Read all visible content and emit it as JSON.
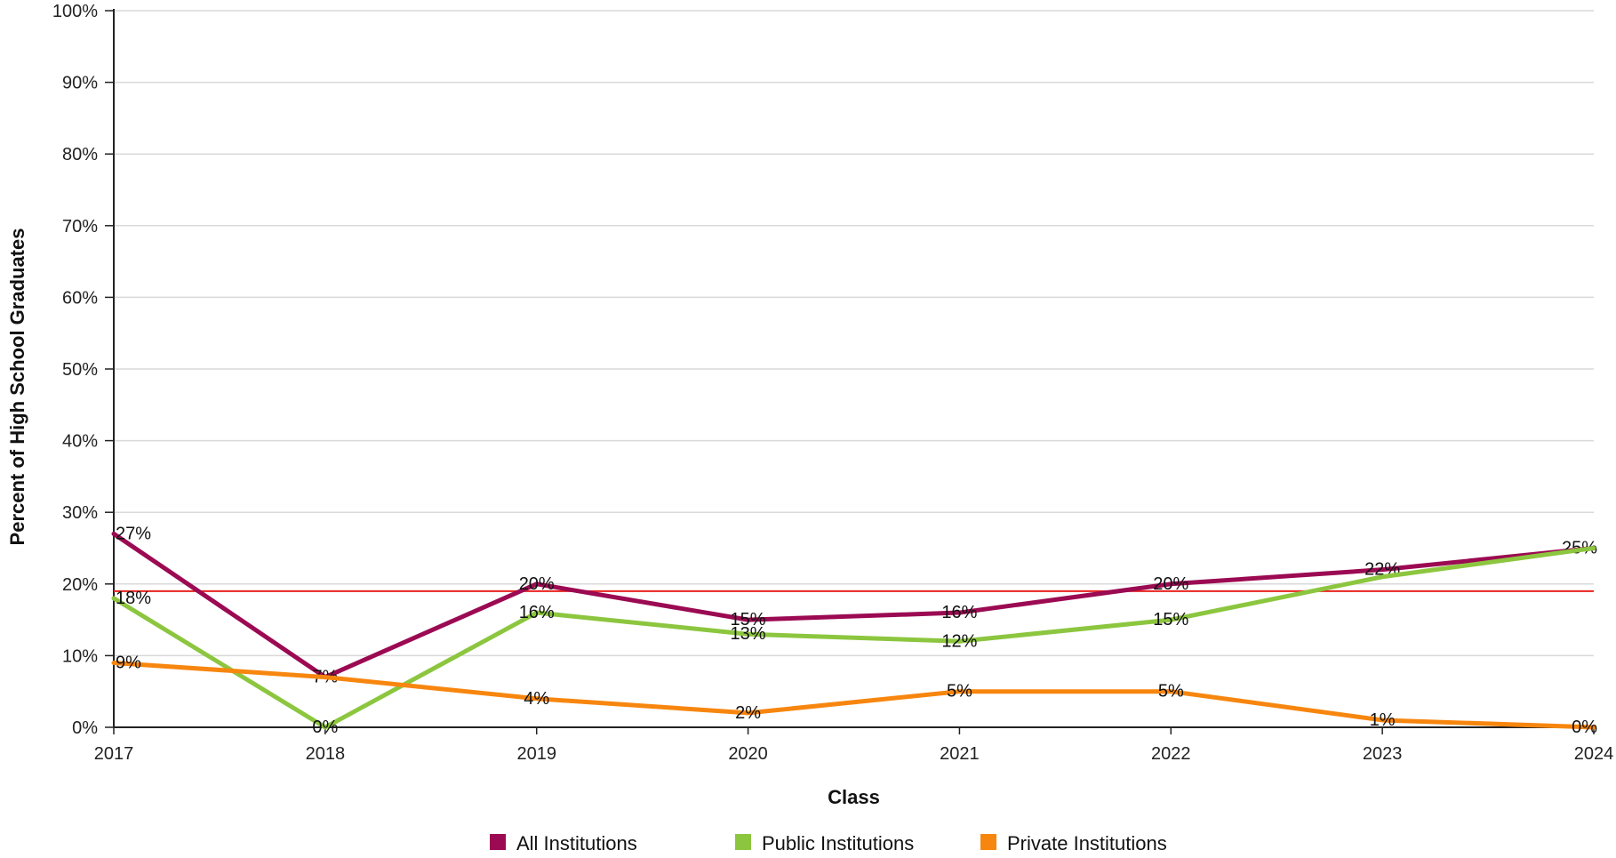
{
  "chart_data": {
    "type": "line",
    "title": "",
    "xlabel": "Class",
    "ylabel": "Percent of High School Graduates",
    "x": [
      "2017",
      "2018",
      "2019",
      "2020",
      "2021",
      "2022",
      "2023",
      "2024"
    ],
    "ylim": [
      0,
      100
    ],
    "yticks": [
      "0%",
      "10%",
      "20%",
      "30%",
      "40%",
      "50%",
      "60%",
      "70%",
      "80%",
      "90%",
      "100%"
    ],
    "grid": true,
    "legend_position": "bottom",
    "reference_line": {
      "value": 19,
      "color": "#e8231f"
    },
    "series": [
      {
        "name": "All Institutions",
        "color": "#9b0a52",
        "values": [
          27,
          7,
          20,
          15,
          16,
          20,
          22,
          25
        ],
        "labels": [
          "27%",
          "7%",
          "20%",
          "15%",
          "16%",
          "20%",
          "22%",
          "25%"
        ]
      },
      {
        "name": "Public Institutions",
        "color": "#8cc63f",
        "values": [
          18,
          0,
          16,
          13,
          12,
          15,
          21,
          25
        ],
        "labels": [
          "18%",
          "0%",
          "16%",
          "13%",
          "12%",
          "15%",
          "",
          ""
        ]
      },
      {
        "name": "Private Institutions",
        "color": "#f7860f",
        "values": [
          9,
          7,
          4,
          2,
          5,
          5,
          1,
          0
        ],
        "labels": [
          "9%",
          "",
          "4%",
          "2%",
          "5%",
          "5%",
          "1%",
          "0%"
        ]
      }
    ]
  }
}
